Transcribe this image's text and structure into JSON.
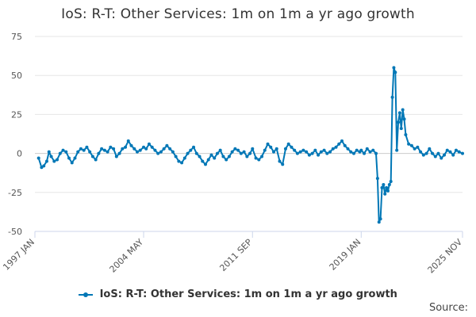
{
  "chart_data": {
    "type": "line",
    "title": "IoS: R-T: Other Services: 1m on 1m a yr ago growth",
    "xlabel": "",
    "ylabel": "",
    "ylim": [
      -50,
      75
    ],
    "yticks": [
      75,
      50,
      25,
      0,
      -25,
      -50
    ],
    "xticks": [
      {
        "label": "1997 JAN",
        "t": 1997.0
      },
      {
        "label": "2004 MAY",
        "t": 2004.33
      },
      {
        "label": "2011 SEP",
        "t": 2011.67
      },
      {
        "label": "2019 JAN",
        "t": 2019.0
      },
      {
        "label": "2025 NOV",
        "t": 2025.83
      }
    ],
    "xlim": [
      1997.0,
      2025.83
    ],
    "grid": true,
    "legend_position": "bottom",
    "series": [
      {
        "name": "IoS: R-T: Other Services: 1m on 1m a yr ago growth",
        "color": "#0077b6",
        "points": [
          [
            1997.25,
            -3
          ],
          [
            1997.45,
            -9
          ],
          [
            1997.6,
            -8
          ],
          [
            1997.8,
            -5
          ],
          [
            1997.95,
            1
          ],
          [
            1998.1,
            -2
          ],
          [
            1998.3,
            -5
          ],
          [
            1998.5,
            -4
          ],
          [
            1998.7,
            0
          ],
          [
            1998.9,
            2
          ],
          [
            1999.1,
            1
          ],
          [
            1999.3,
            -3
          ],
          [
            1999.5,
            -6
          ],
          [
            1999.7,
            -3
          ],
          [
            1999.9,
            1
          ],
          [
            2000.1,
            3
          ],
          [
            2000.3,
            2
          ],
          [
            2000.5,
            4
          ],
          [
            2000.7,
            1
          ],
          [
            2000.9,
            -2
          ],
          [
            2001.1,
            -4
          ],
          [
            2001.3,
            0
          ],
          [
            2001.5,
            3
          ],
          [
            2001.7,
            2
          ],
          [
            2001.9,
            1
          ],
          [
            2002.1,
            4
          ],
          [
            2002.3,
            3
          ],
          [
            2002.5,
            -2
          ],
          [
            2002.7,
            0
          ],
          [
            2002.9,
            3
          ],
          [
            2003.1,
            4
          ],
          [
            2003.3,
            8
          ],
          [
            2003.5,
            5
          ],
          [
            2003.7,
            3
          ],
          [
            2003.9,
            1
          ],
          [
            2004.1,
            2
          ],
          [
            2004.33,
            4
          ],
          [
            2004.5,
            3
          ],
          [
            2004.7,
            6
          ],
          [
            2004.9,
            4
          ],
          [
            2005.1,
            2
          ],
          [
            2005.3,
            0
          ],
          [
            2005.5,
            1
          ],
          [
            2005.7,
            3
          ],
          [
            2005.9,
            5
          ],
          [
            2006.1,
            3
          ],
          [
            2006.3,
            1
          ],
          [
            2006.5,
            -2
          ],
          [
            2006.7,
            -5
          ],
          [
            2006.9,
            -6
          ],
          [
            2007.1,
            -3
          ],
          [
            2007.3,
            0
          ],
          [
            2007.5,
            2
          ],
          [
            2007.7,
            4
          ],
          [
            2007.9,
            0
          ],
          [
            2008.1,
            -2
          ],
          [
            2008.3,
            -5
          ],
          [
            2008.5,
            -7
          ],
          [
            2008.7,
            -4
          ],
          [
            2008.9,
            -1
          ],
          [
            2009.1,
            -3
          ],
          [
            2009.3,
            0
          ],
          [
            2009.5,
            2
          ],
          [
            2009.7,
            -2
          ],
          [
            2009.9,
            -4
          ],
          [
            2010.1,
            -2
          ],
          [
            2010.3,
            1
          ],
          [
            2010.5,
            3
          ],
          [
            2010.7,
            2
          ],
          [
            2010.9,
            0
          ],
          [
            2011.1,
            1
          ],
          [
            2011.3,
            -2
          ],
          [
            2011.5,
            0
          ],
          [
            2011.67,
            3
          ],
          [
            2011.9,
            -3
          ],
          [
            2012.1,
            -4
          ],
          [
            2012.3,
            -2
          ],
          [
            2012.5,
            2
          ],
          [
            2012.7,
            6
          ],
          [
            2012.9,
            4
          ],
          [
            2013.1,
            1
          ],
          [
            2013.3,
            3
          ],
          [
            2013.5,
            -5
          ],
          [
            2013.7,
            -7
          ],
          [
            2013.9,
            3
          ],
          [
            2014.1,
            6
          ],
          [
            2014.3,
            4
          ],
          [
            2014.5,
            2
          ],
          [
            2014.7,
            0
          ],
          [
            2014.9,
            1
          ],
          [
            2015.1,
            2
          ],
          [
            2015.3,
            1
          ],
          [
            2015.5,
            -1
          ],
          [
            2015.7,
            0
          ],
          [
            2015.9,
            2
          ],
          [
            2016.1,
            -1
          ],
          [
            2016.3,
            1
          ],
          [
            2016.5,
            2
          ],
          [
            2016.7,
            0
          ],
          [
            2016.9,
            1
          ],
          [
            2017.1,
            3
          ],
          [
            2017.3,
            4
          ],
          [
            2017.5,
            6
          ],
          [
            2017.7,
            8
          ],
          [
            2017.9,
            5
          ],
          [
            2018.1,
            3
          ],
          [
            2018.3,
            1
          ],
          [
            2018.5,
            0
          ],
          [
            2018.7,
            2
          ],
          [
            2018.9,
            1
          ],
          [
            2019.0,
            2
          ],
          [
            2019.2,
            0
          ],
          [
            2019.4,
            3
          ],
          [
            2019.6,
            1
          ],
          [
            2019.8,
            2
          ],
          [
            2020.0,
            0
          ],
          [
            2020.1,
            -16
          ],
          [
            2020.2,
            -44
          ],
          [
            2020.3,
            -42
          ],
          [
            2020.4,
            -22
          ],
          [
            2020.5,
            -20
          ],
          [
            2020.6,
            -26
          ],
          [
            2020.7,
            -22
          ],
          [
            2020.8,
            -24
          ],
          [
            2020.9,
            -20
          ],
          [
            2021.0,
            -18
          ],
          [
            2021.1,
            36
          ],
          [
            2021.2,
            55
          ],
          [
            2021.3,
            52
          ],
          [
            2021.4,
            2
          ],
          [
            2021.5,
            20
          ],
          [
            2021.6,
            26
          ],
          [
            2021.7,
            16
          ],
          [
            2021.8,
            28
          ],
          [
            2021.9,
            22
          ],
          [
            2022.0,
            12
          ],
          [
            2022.2,
            6
          ],
          [
            2022.4,
            5
          ],
          [
            2022.6,
            3
          ],
          [
            2022.8,
            4
          ],
          [
            2023.0,
            1
          ],
          [
            2023.2,
            -1
          ],
          [
            2023.4,
            0
          ],
          [
            2023.6,
            3
          ],
          [
            2023.8,
            0
          ],
          [
            2024.0,
            -2
          ],
          [
            2024.2,
            0
          ],
          [
            2024.4,
            -3
          ],
          [
            2024.6,
            -1
          ],
          [
            2024.8,
            2
          ],
          [
            2025.0,
            1
          ],
          [
            2025.2,
            -1
          ],
          [
            2025.4,
            2
          ],
          [
            2025.6,
            1
          ],
          [
            2025.83,
            0
          ]
        ]
      }
    ]
  },
  "legend": {
    "label": "IoS: R-T: Other Services: 1m on 1m a yr ago growth"
  },
  "footer": {
    "source_label": "Source:"
  }
}
